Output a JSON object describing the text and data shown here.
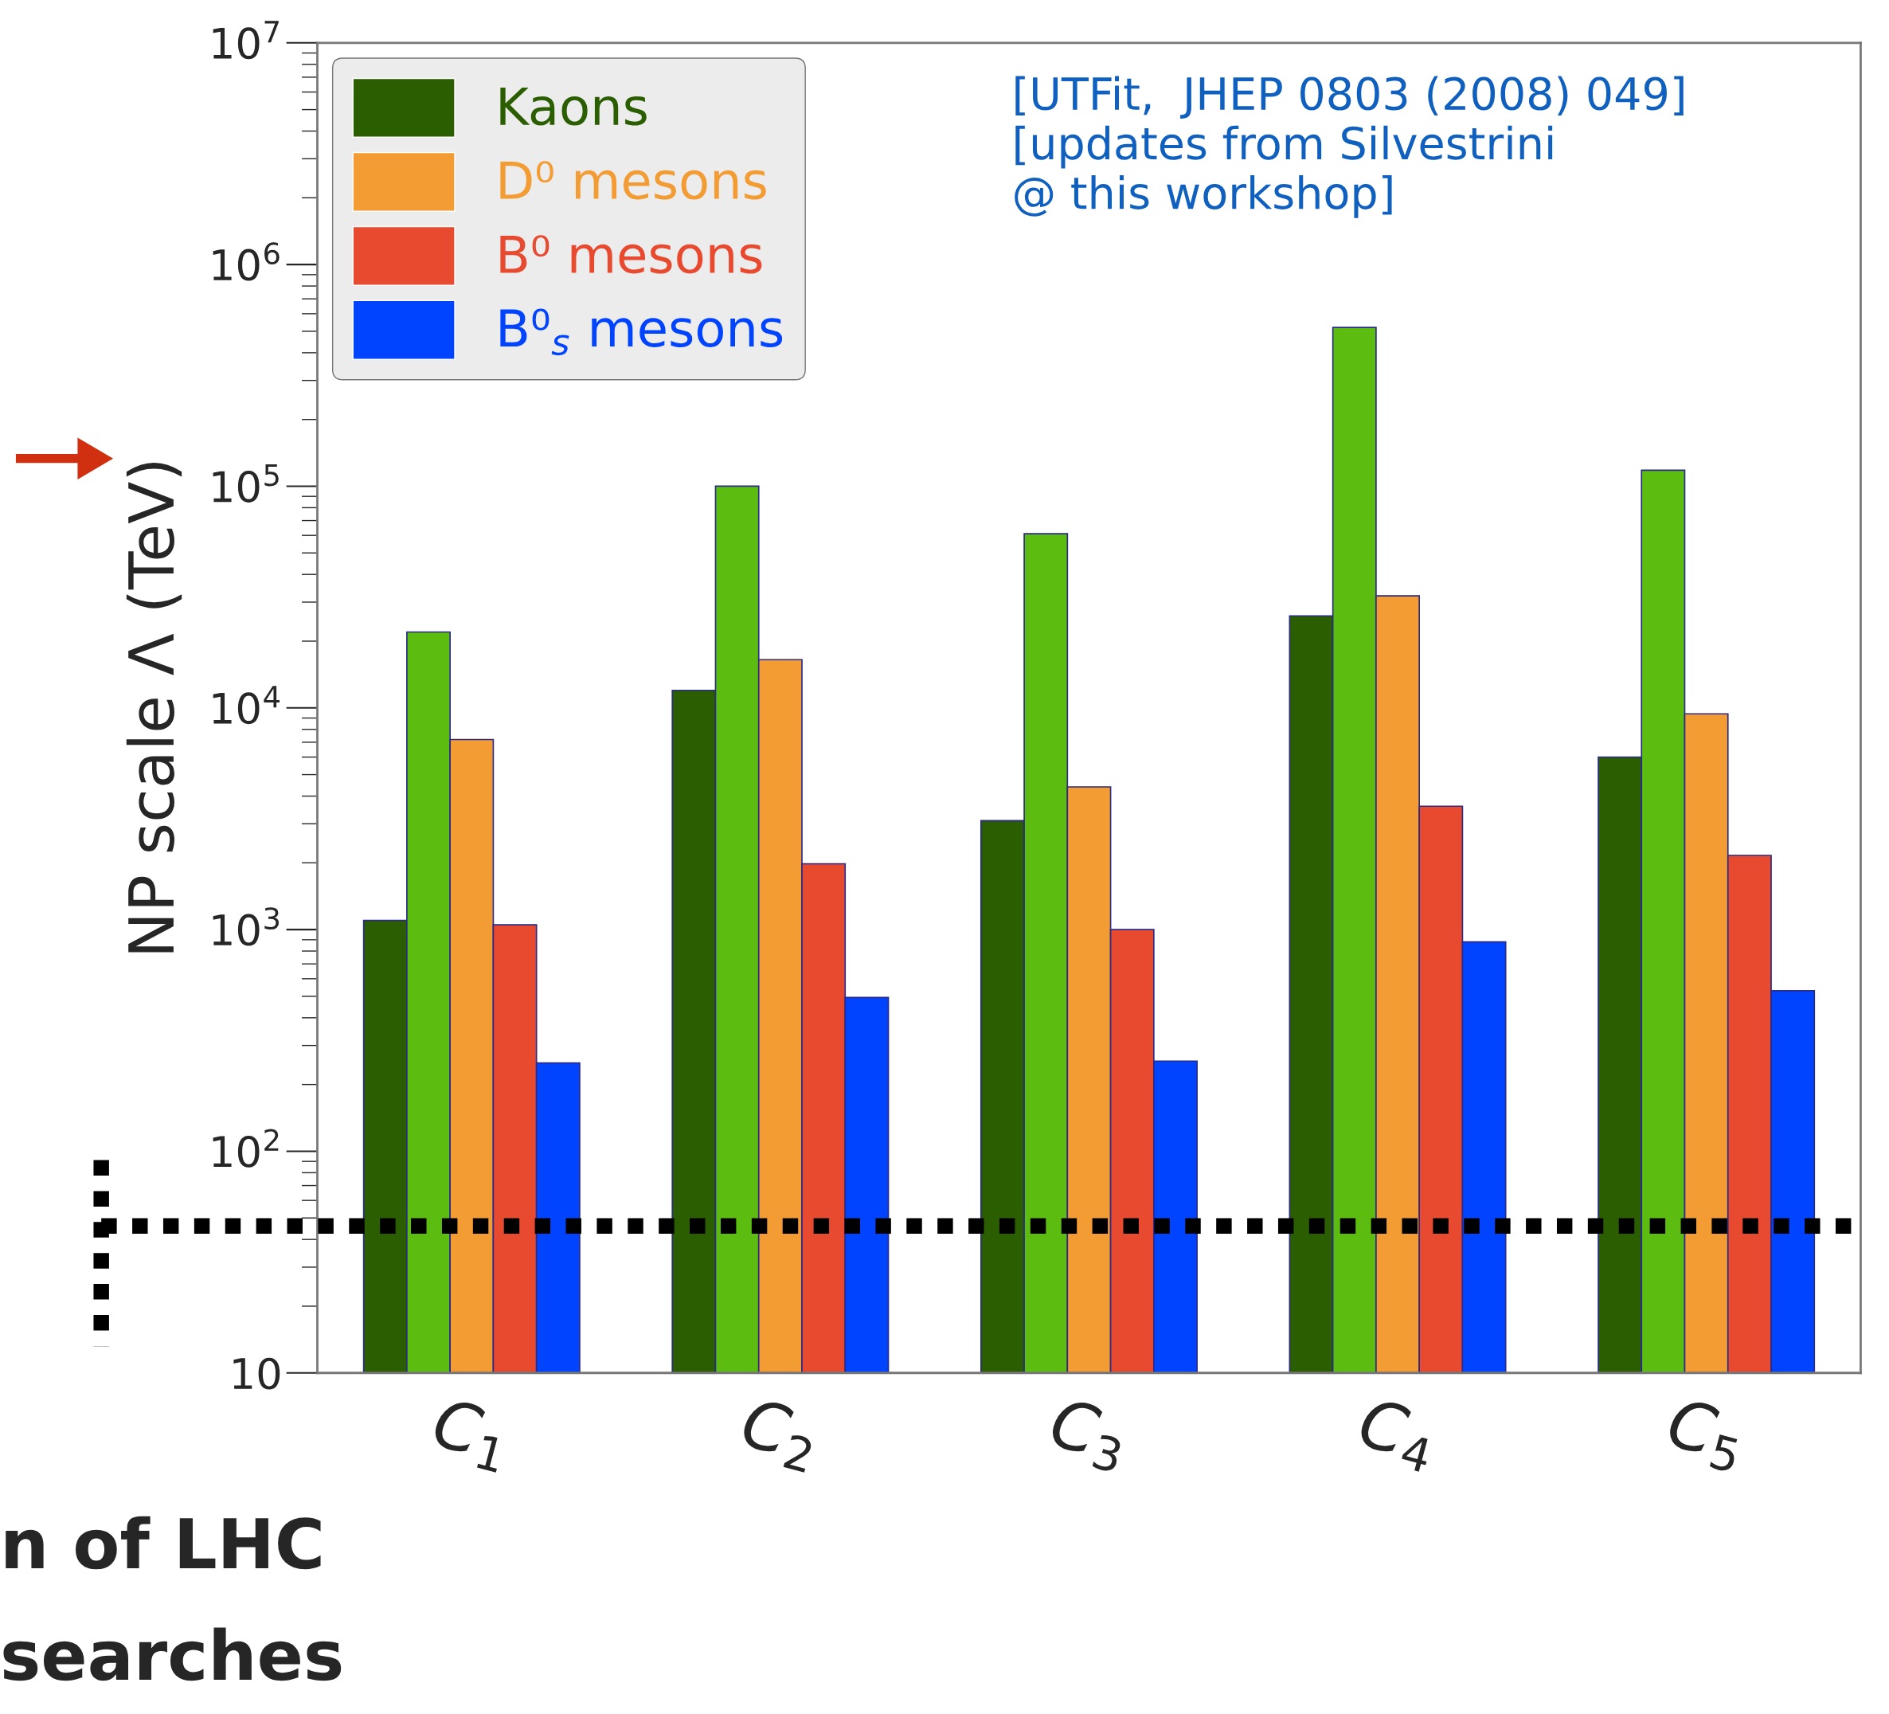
{
  "chart_data": {
    "type": "bar",
    "ylabel": "NP scale Λ (TeV)",
    "log": true,
    "categories": [
      "C$_{1}$",
      "C$_{2}$",
      "C$_{3}$",
      "C$_{4}$",
      "C$_{5}$"
    ],
    "series": [
      {
        "name": "Kaons",
        "color": "#2b5e00",
        "values": [
          1100,
          12000,
          3100,
          26000,
          6000
        ]
      },
      {
        "color": "#5cbd10",
        "values": [
          22000,
          100000,
          61000,
          520000,
          118000
        ]
      },
      {
        "name": "D⁰ mesons",
        "color": "#f39c34",
        "values": [
          7200,
          16500,
          4400,
          32000,
          9400
        ]
      },
      {
        "name": "B⁰ mesons",
        "color": "#e84a2f",
        "values": [
          1050,
          1980,
          1000,
          3600,
          2160
        ]
      },
      {
        "name": "B⁰$_{s}$ mesons",
        "color": "#0044ff",
        "values": [
          250,
          494,
          255,
          880,
          530
        ]
      }
    ],
    "ylim": [
      10,
      10000000
    ],
    "yticks": [
      10,
      {
        "value": 100,
        "label": "10$^{2}$"
      },
      {
        "value": 1000,
        "label": "10$^{3}$"
      },
      {
        "value": 10000,
        "label": "10$^{4}$"
      },
      {
        "value": 100000,
        "label": "10$^{5}$"
      },
      {
        "value": 1000000,
        "label": "10$^{6}$"
      },
      {
        "value": 10000000,
        "label": "10$^{7}$"
      }
    ],
    "grid": false,
    "legend": "top left",
    "ref_lines": [
      {
        "axis": "y",
        "value": 46,
        "color": "#000000",
        "line_style": "dotted"
      }
    ],
    "annotations": [
      "[UTFit,  JHEP 0803 (2008) 049]\n[updates from Silvestrini\n@ this workshop]",
      "n of LHC",
      "searches"
    ]
  }
}
